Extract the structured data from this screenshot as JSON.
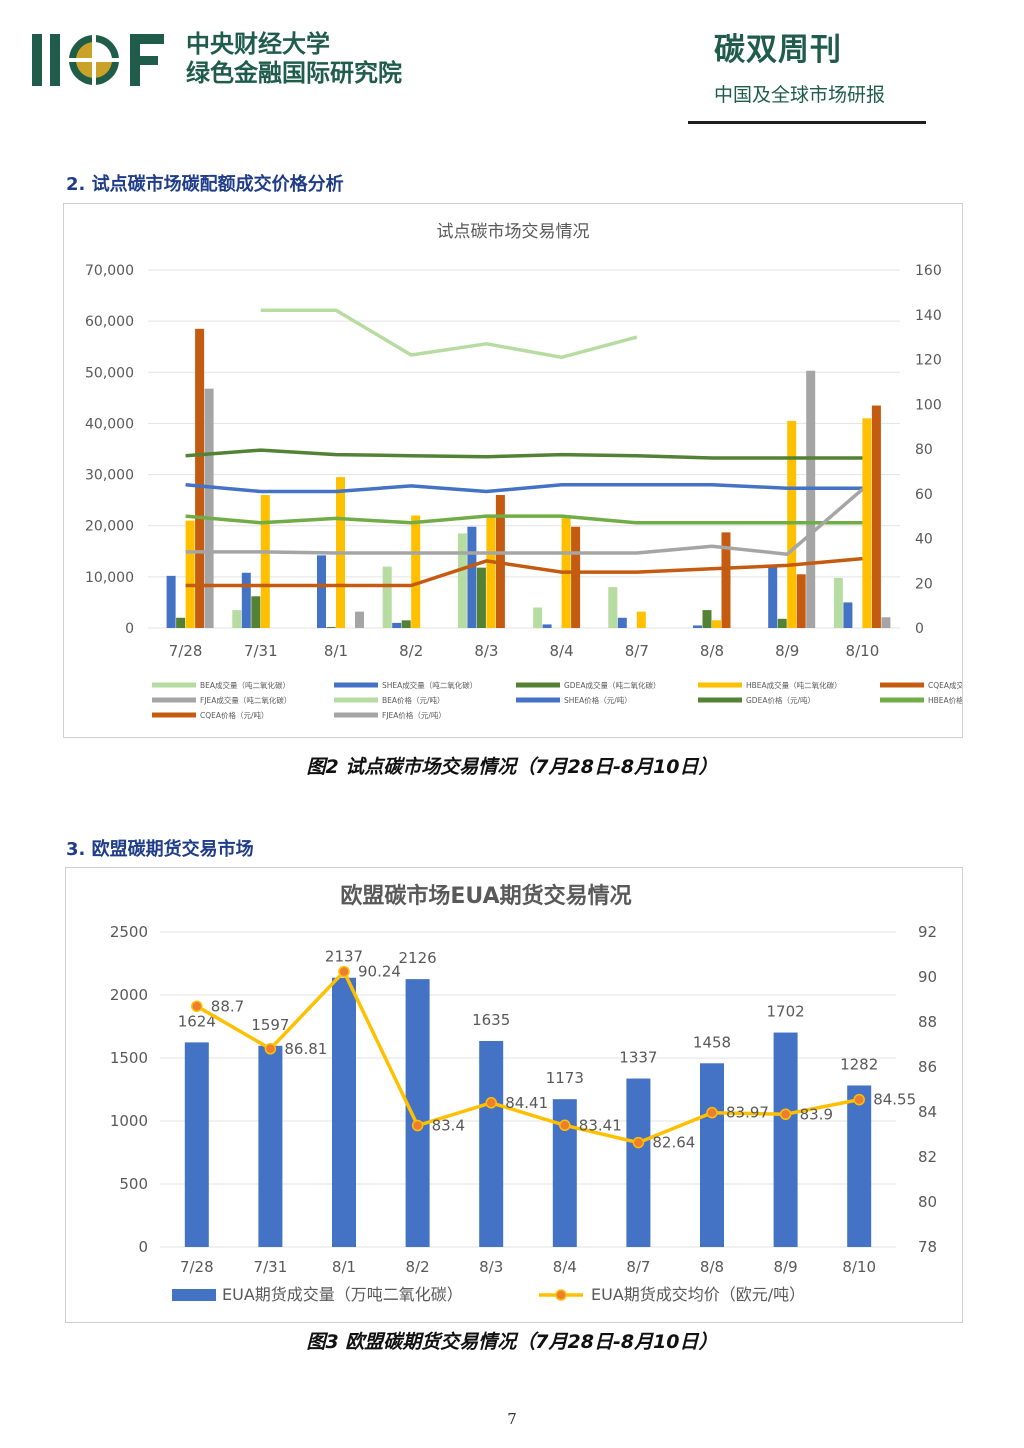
{
  "header": {
    "org_line1": "中央财经大学",
    "org_line2": "绿色金融国际研究院",
    "pub_title": "碳双周刊",
    "pub_subtitle": "中国及全球市场研报",
    "brand_color": "#1f5c4a"
  },
  "section2": {
    "title": "2. 试点碳市场碳配额成交价格分析"
  },
  "figure2": {
    "caption": "图2 试点碳市场交易情况（7月28日-8月10日）"
  },
  "section3": {
    "title": "3. 欧盟碳期货交易市场"
  },
  "figure3": {
    "caption": "图3 欧盟碳期货交易情况（7月28日-8月10日）"
  },
  "page_number": "7",
  "chart_data": [
    {
      "type": "bar",
      "title": "试点碳市场交易情况",
      "categories": [
        "7/28",
        "7/31",
        "8/1",
        "8/2",
        "8/3",
        "8/4",
        "8/7",
        "8/8",
        "8/9",
        "8/10"
      ],
      "y_left": {
        "min": 0,
        "max": 70000,
        "ticks": [
          "0",
          "10,000",
          "20,000",
          "30,000",
          "40,000",
          "50,000",
          "60,000",
          "70,000"
        ]
      },
      "y_right": {
        "min": 0,
        "max": 160,
        "ticks": [
          "0",
          "20",
          "40",
          "60",
          "80",
          "100",
          "120",
          "140",
          "160"
        ]
      },
      "bar_series": [
        {
          "name": "BEA成交量（吨二氧化碳）",
          "color": "#b7dca1",
          "values": [
            0,
            3500,
            0,
            12000,
            18500,
            4000,
            8000,
            0,
            0,
            9800
          ]
        },
        {
          "name": "SHEA成交量（吨二氧化碳）",
          "color": "#4472c4",
          "values": [
            10200,
            10800,
            14200,
            1000,
            19800,
            700,
            2000,
            500,
            12000,
            5000
          ]
        },
        {
          "name": "GDEA成交量（吨二氧化碳）",
          "color": "#548235",
          "values": [
            2000,
            6200,
            200,
            1500,
            11800,
            0,
            0,
            3500,
            1800,
            0
          ]
        },
        {
          "name": "HBEA成交量（吨二氧化碳）",
          "color": "#ffc000",
          "values": [
            21000,
            26000,
            29500,
            22000,
            22000,
            21500,
            3200,
            1500,
            40500,
            41000
          ]
        },
        {
          "name": "CQEA成交量（吨二氧化碳）",
          "color": "#c55a11",
          "values": [
            58500,
            0,
            0,
            0,
            26000,
            19800,
            0,
            18700,
            10500,
            43500
          ]
        },
        {
          "name": "FJEA成交量（吨二氧化碳）",
          "color": "#a5a5a5",
          "values": [
            46800,
            0,
            3200,
            0,
            0,
            0,
            0,
            0,
            50300,
            2100
          ]
        }
      ],
      "line_series": [
        {
          "name": "BEA价格（元/吨）",
          "color": "#b7dca1",
          "values": [
            null,
            142,
            142,
            122,
            127,
            121,
            130,
            null,
            null,
            null
          ]
        },
        {
          "name": "SHEA价格（元/吨）",
          "color": "#4472c4",
          "values": [
            64,
            61,
            61,
            63.5,
            61,
            64,
            64,
            64,
            62.5,
            62.5
          ]
        },
        {
          "name": "GDEA价格（元/吨）",
          "color": "#548235",
          "values": [
            77,
            79.5,
            77.5,
            77,
            76.5,
            77.5,
            77,
            76,
            76,
            76
          ]
        },
        {
          "name": "HBEA价格（元/吨）",
          "color": "#70ad47",
          "values": [
            50,
            47,
            49,
            47,
            50,
            50,
            47,
            47,
            47,
            47
          ]
        },
        {
          "name": "CQEA价格（元/吨）",
          "color": "#c55a11",
          "values": [
            19,
            19,
            19,
            19,
            30,
            25,
            25,
            26.5,
            28,
            31
          ]
        },
        {
          "name": "FJEA价格（元/吨）",
          "color": "#a5a5a5",
          "values": [
            34,
            34,
            33.5,
            33.5,
            33.5,
            33.5,
            33.5,
            36.5,
            33,
            62
          ]
        }
      ],
      "legend_position": "bottom",
      "grid": true
    },
    {
      "type": "bar",
      "title": "欧盟碳市场EUA期货交易情况",
      "categories": [
        "7/28",
        "7/31",
        "8/1",
        "8/2",
        "8/3",
        "8/4",
        "8/7",
        "8/8",
        "8/9",
        "8/10"
      ],
      "y_left": {
        "min": 0,
        "max": 2500,
        "ticks": [
          "0",
          "500",
          "1000",
          "1500",
          "2000",
          "2500"
        ]
      },
      "y_right": {
        "min": 78,
        "max": 92,
        "ticks": [
          "78",
          "80",
          "82",
          "84",
          "86",
          "88",
          "90",
          "92"
        ]
      },
      "bar_series": [
        {
          "name": "EUA期货成交量（万吨二氧化碳）",
          "color": "#4472c4",
          "values": [
            1624,
            1597,
            2137,
            2126,
            1635,
            1173,
            1337,
            1458,
            1702,
            1282
          ]
        }
      ],
      "line_series": [
        {
          "name": "EUA期货成交均价（欧元/吨）",
          "color": "#ffc000",
          "values": [
            88.7,
            86.81,
            90.24,
            83.4,
            84.41,
            83.41,
            82.64,
            83.97,
            83.9,
            84.55
          ]
        }
      ],
      "legend_position": "bottom",
      "grid": true
    }
  ]
}
